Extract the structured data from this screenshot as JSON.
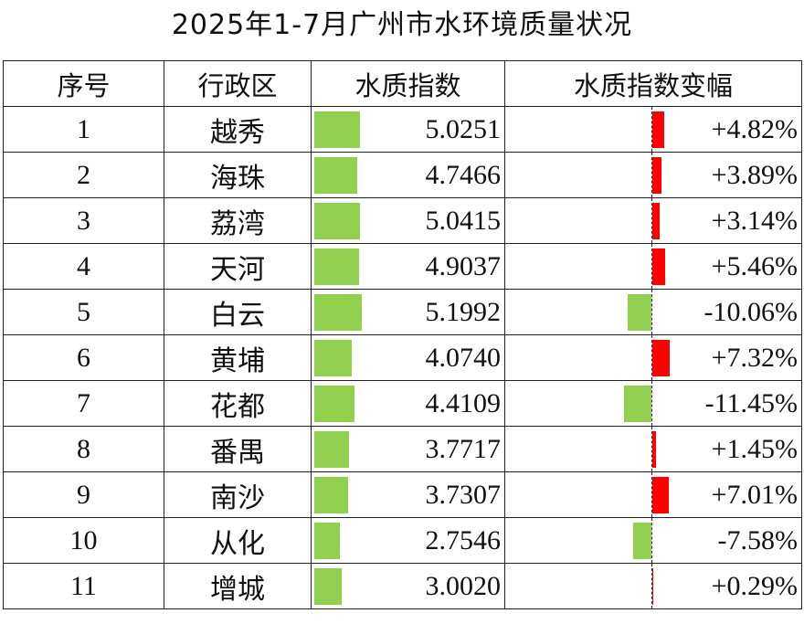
{
  "title": "2025年1-7月广州市水环境质量状况",
  "headers": [
    "序号",
    "行政区",
    "水质指数",
    "水质指数变幅"
  ],
  "colors": {
    "index_bar": "#92d050",
    "increase_bar": "#ff0000",
    "decrease_bar": "#92d050"
  },
  "rows": [
    {
      "idx": "1",
      "district": "越秀",
      "index": "5.0251",
      "change": "+4.82%",
      "index_value": 5.0251,
      "change_value": 4.82
    },
    {
      "idx": "2",
      "district": "海珠",
      "index": "4.7466",
      "change": "+3.89%",
      "index_value": 4.7466,
      "change_value": 3.89
    },
    {
      "idx": "3",
      "district": "荔湾",
      "index": "5.0415",
      "change": "+3.14%",
      "index_value": 5.0415,
      "change_value": 3.14
    },
    {
      "idx": "4",
      "district": "天河",
      "index": "4.9037",
      "change": "+5.46%",
      "index_value": 4.9037,
      "change_value": 5.46
    },
    {
      "idx": "5",
      "district": "白云",
      "index": "5.1992",
      "change": "-10.06%",
      "index_value": 5.1992,
      "change_value": -10.06
    },
    {
      "idx": "6",
      "district": "黄埔",
      "index": "4.0740",
      "change": "+7.32%",
      "index_value": 4.074,
      "change_value": 7.32
    },
    {
      "idx": "7",
      "district": "花都",
      "index": "4.4109",
      "change": "-11.45%",
      "index_value": 4.4109,
      "change_value": -11.45
    },
    {
      "idx": "8",
      "district": "番禺",
      "index": "3.7717",
      "change": "+1.45%",
      "index_value": 3.7717,
      "change_value": 1.45
    },
    {
      "idx": "9",
      "district": "南沙",
      "index": "3.7307",
      "change": "+7.01%",
      "index_value": 3.7307,
      "change_value": 7.01
    },
    {
      "idx": "10",
      "district": "从化",
      "index": "2.7546",
      "change": "-7.58%",
      "index_value": 2.7546,
      "change_value": -7.58
    },
    {
      "idx": "11",
      "district": "增城",
      "index": "3.0020",
      "change": "+0.29%",
      "index_value": 3.002,
      "change_value": 0.29
    }
  ]
}
